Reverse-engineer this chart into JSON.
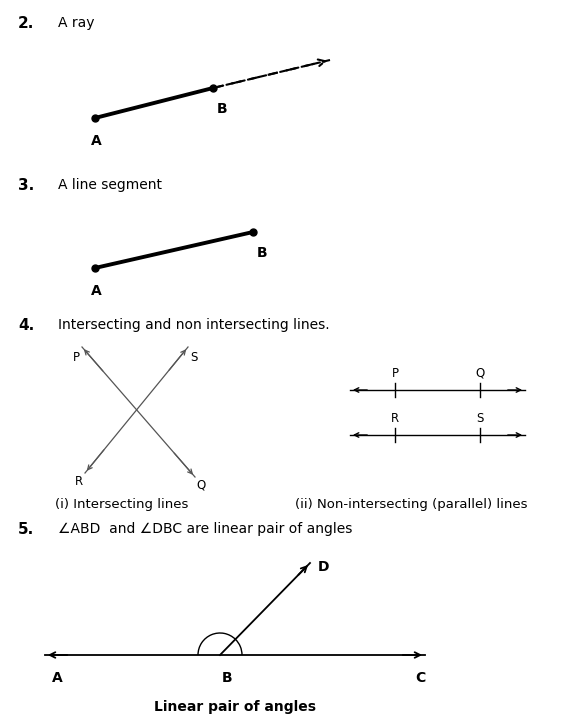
{
  "bg_color": "#ffffff",
  "text_color": "#000000",
  "section2_num": "2.",
  "section2_title": "A ray",
  "section3_num": "3.",
  "section3_title": "A line segment",
  "section4_num": "4.",
  "section4_title": "Intersecting and non intersecting lines.",
  "section5_num": "5.",
  "section5_title": "∠ABD  and ∠DBC are linear pair of angles",
  "linear_pair_label": "Linear pair of angles",
  "num_fontsize": 11,
  "title_fontsize": 10,
  "label_fontsize": 10,
  "caption_fontsize": 9.5
}
